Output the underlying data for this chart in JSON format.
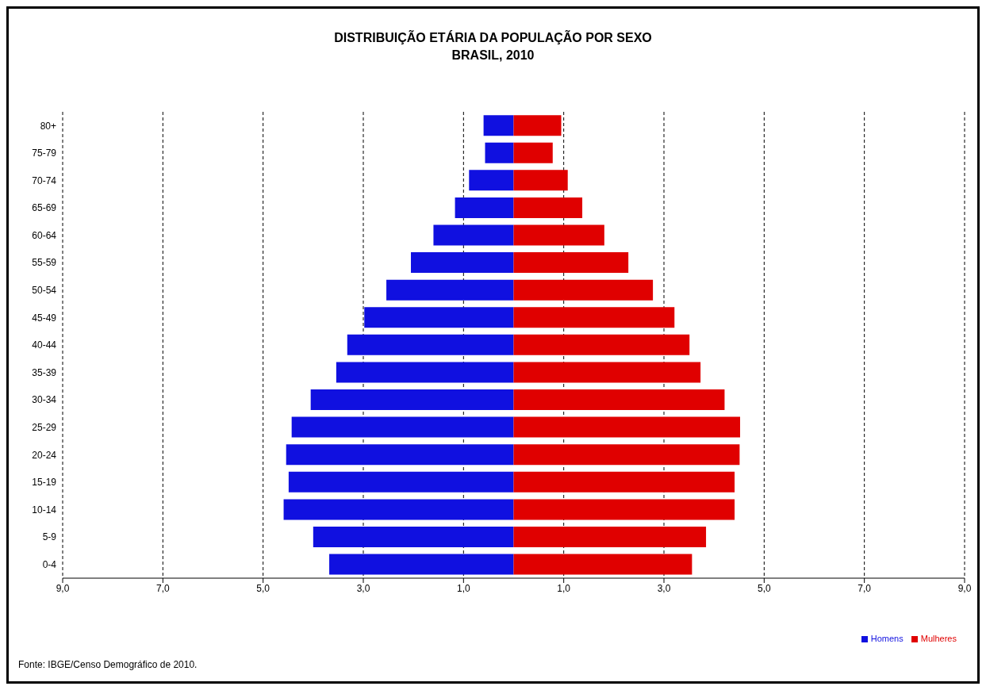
{
  "chart_data": {
    "type": "bar",
    "orientation": "horizontal",
    "stacked": true,
    "title": "DISTRIBUIÇÃO ETÁRIA DA POPULAÇÃO POR SEXO",
    "subtitle": "BRASIL, 2010",
    "categories": [
      "80+",
      "75-79",
      "70-74",
      "65-69",
      "60-64",
      "55-59",
      "50-54",
      "45-49",
      "40-44",
      "35-39",
      "30-34",
      "25-29",
      "20-24",
      "15-19",
      "10-14",
      "5-9",
      "0-4"
    ],
    "series": [
      {
        "name": "Homens",
        "color": "#1010e0",
        "values": [
          -0.6,
          -0.57,
          -0.89,
          -1.17,
          -1.6,
          -2.05,
          -2.54,
          -2.98,
          -3.32,
          -3.54,
          -4.05,
          -4.43,
          -4.54,
          -4.49,
          -4.59,
          -4.0,
          -3.68
        ]
      },
      {
        "name": "Mulheres",
        "color": "#e00000",
        "values": [
          0.95,
          0.78,
          1.08,
          1.37,
          1.81,
          2.29,
          2.78,
          3.21,
          3.51,
          3.73,
          4.21,
          4.52,
          4.51,
          4.41,
          4.41,
          3.84,
          3.56
        ]
      }
    ],
    "xlim": [
      -9,
      9
    ],
    "xticks": [
      {
        "value": -9,
        "label": "9,0"
      },
      {
        "value": -7,
        "label": "7,0"
      },
      {
        "value": -5,
        "label": "5,0"
      },
      {
        "value": -3,
        "label": "3,0"
      },
      {
        "value": -1,
        "label": "1,0"
      },
      {
        "value": 1,
        "label": "1,0"
      },
      {
        "value": 3,
        "label": "3,0"
      },
      {
        "value": 5,
        "label": "5,0"
      },
      {
        "value": 7,
        "label": "7,0"
      },
      {
        "value": 9,
        "label": "9,0"
      }
    ],
    "grid": "x",
    "legend": "bottom right",
    "annotations": [
      "Fonte: IBGE/Censo Demográfico de 2010."
    ]
  }
}
